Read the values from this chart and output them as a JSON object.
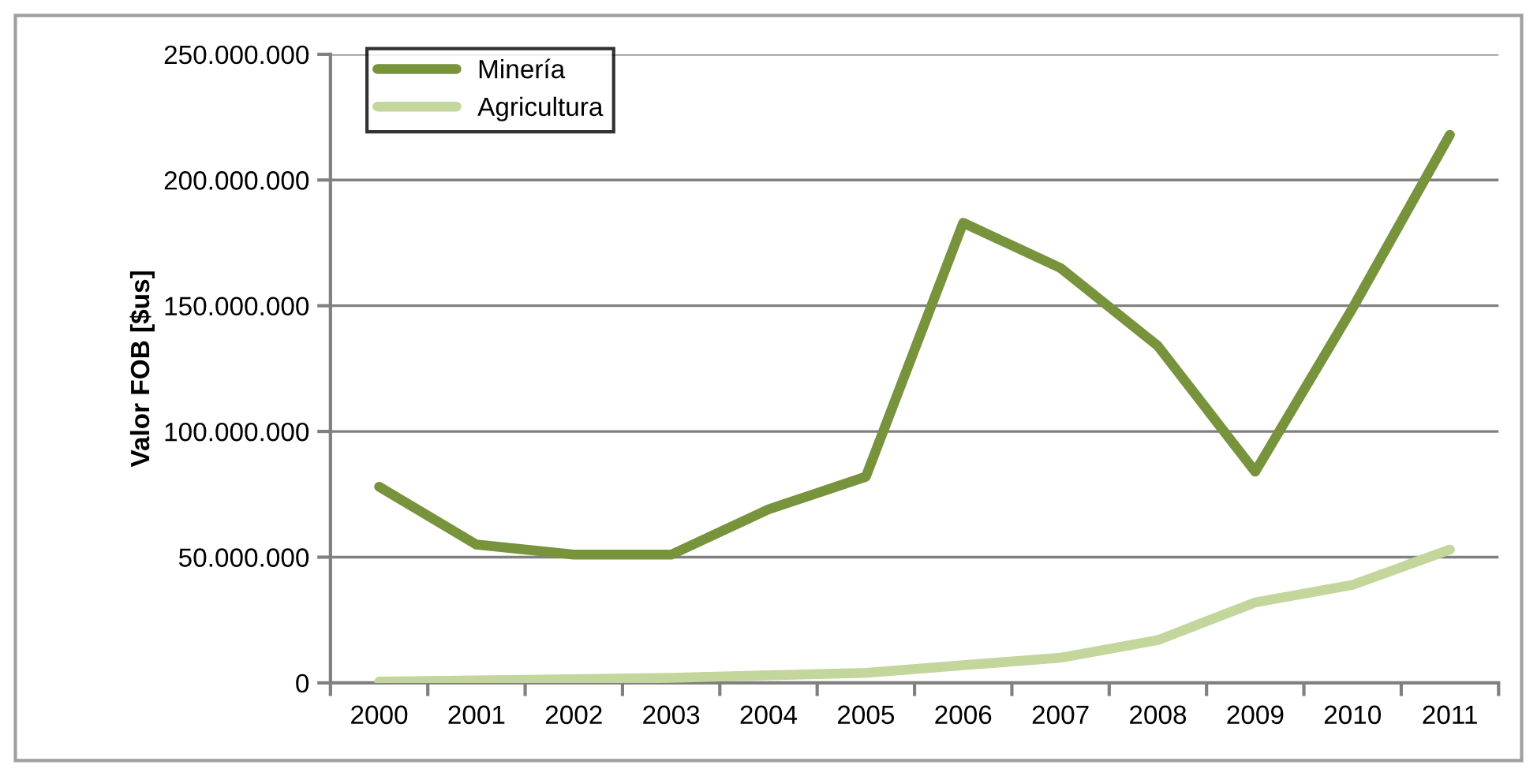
{
  "chart_data": {
    "type": "line",
    "ylabel": "Valor FOB [$us]",
    "categories": [
      "2000",
      "2001",
      "2002",
      "2003",
      "2004",
      "2005",
      "2006",
      "2007",
      "2008",
      "2009",
      "2010",
      "2011"
    ],
    "series": [
      {
        "name": "Minería",
        "color": "#77933c",
        "values": [
          78000000,
          55000000,
          51000000,
          51000000,
          69000000,
          82000000,
          183000000,
          165000000,
          134000000,
          84000000,
          149000000,
          218000000
        ]
      },
      {
        "name": "Agricultura",
        "color": "#c3d69b",
        "values": [
          500000,
          1000000,
          1500000,
          2000000,
          3000000,
          4000000,
          7000000,
          10000000,
          17000000,
          32000000,
          39000000,
          53000000
        ]
      }
    ],
    "ylim": [
      0,
      250000000
    ],
    "yticks": [
      {
        "value": 0,
        "label": "0"
      },
      {
        "value": 50000000,
        "label": "50.000.000"
      },
      {
        "value": 100000000,
        "label": "100.000.000"
      },
      {
        "value": 150000000,
        "label": "150.000.000"
      },
      {
        "value": 200000000,
        "label": "200.000.000"
      },
      {
        "value": 250000000,
        "label": "250.000.000"
      }
    ],
    "grid": "y",
    "legend": "top left",
    "marker": "none",
    "line_style": "solid"
  }
}
